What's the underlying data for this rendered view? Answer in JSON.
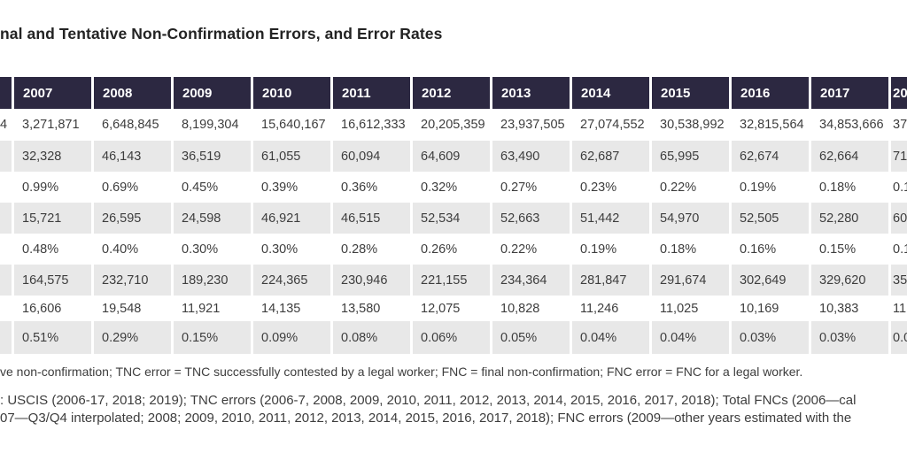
{
  "title": "nal and Tentative Non-Confirmation Errors, and Error Rates",
  "colors": {
    "header_background": "#2c2841",
    "stripe_row_background": "#e8e8e8",
    "body_text": "#3d3d3d",
    "title_text": "#232323"
  },
  "table": {
    "columns": [
      "",
      "2007",
      "2008",
      "2009",
      "2010",
      "2011",
      "2012",
      "2013",
      "2014",
      "2015",
      "2016",
      "2017",
      "20"
    ],
    "rows": [
      {
        "cells": [
          "4",
          "3,271,871",
          "6,648,845",
          "8,199,304",
          "15,640,167",
          "16,612,333",
          "20,205,359",
          "23,937,505",
          "27,074,552",
          "30,538,992",
          "32,815,564",
          "34,853,666",
          "37"
        ]
      },
      {
        "cells": [
          "",
          "32,328",
          "46,143",
          "36,519",
          "61,055",
          "60,094",
          "64,609",
          "63,490",
          "62,687",
          "65,995",
          "62,674",
          "62,664",
          "71"
        ]
      },
      {
        "cells": [
          "",
          "0.99%",
          "0.69%",
          "0.45%",
          "0.39%",
          "0.36%",
          "0.32%",
          "0.27%",
          "0.23%",
          "0.22%",
          "0.19%",
          "0.18%",
          "0.1"
        ]
      },
      {
        "cells": [
          "",
          "15,721",
          "26,595",
          "24,598",
          "46,921",
          "46,515",
          "52,534",
          "52,663",
          "51,442",
          "54,970",
          "52,505",
          "52,280",
          "60"
        ]
      },
      {
        "cells": [
          "",
          "0.48%",
          "0.40%",
          "0.30%",
          "0.30%",
          "0.28%",
          "0.26%",
          "0.22%",
          "0.19%",
          "0.18%",
          "0.16%",
          "0.15%",
          "0.1"
        ]
      },
      {
        "cells": [
          "",
          "164,575",
          "232,710",
          "189,230",
          "224,365",
          "230,946",
          "221,155",
          "234,364",
          "281,847",
          "291,674",
          "302,649",
          "329,620",
          "35"
        ]
      },
      {
        "cells": [
          "",
          "16,606",
          "19,548",
          "11,921",
          "14,135",
          "13,580",
          "12,075",
          "10,828",
          "11,246",
          "11,025",
          "10,169",
          "10,383",
          "11"
        ]
      },
      {
        "cells": [
          "",
          "0.51%",
          "0.29%",
          "0.15%",
          "0.09%",
          "0.08%",
          "0.06%",
          "0.05%",
          "0.04%",
          "0.04%",
          "0.03%",
          "0.03%",
          "0.0"
        ]
      }
    ]
  },
  "notes": [
    "ve non-confirmation; TNC error = TNC successfully contested by a legal worker; FNC = final non-confirmation; FNC error = FNC for a legal worker.",
    ": USCIS (2006-17, 2018; 2019); TNC errors (2006-7, 2008, 2009, 2010, 2011, 2012, 2013, 2014, 2015, 2016, 2017, 2018); Total FNCs (2006—cal",
    "07—Q3/Q4 interpolated; 2008; 2009, 2010, 2011, 2012, 2013, 2014, 2015, 2016, 2017, 2018); FNC errors (2009—other years estimated with the"
  ]
}
